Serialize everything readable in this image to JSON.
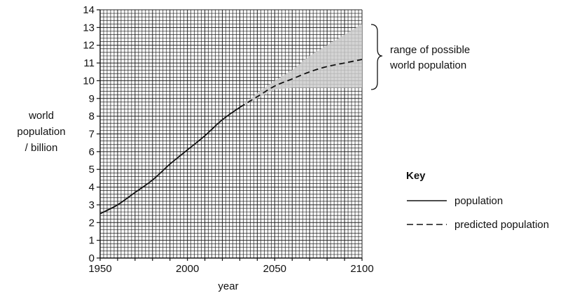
{
  "chart_data": {
    "type": "line",
    "xlabel": "year",
    "ylabel_lines": [
      "world",
      "population",
      "/ billion"
    ],
    "xlim": [
      1950,
      2100
    ],
    "ylim": [
      0,
      14
    ],
    "x_ticks": [
      "1950",
      "2000",
      "2050",
      "2100"
    ],
    "y_ticks": [
      "0",
      "1",
      "2",
      "3",
      "4",
      "5",
      "6",
      "7",
      "8",
      "9",
      "10",
      "11",
      "12",
      "13",
      "14"
    ],
    "grid": "fine grid, 5 minor divisions per 10 years and per billion",
    "series": [
      {
        "name": "population",
        "style": "solid",
        "x": [
          1950,
          1960,
          1970,
          1980,
          1990,
          2000,
          2010,
          2020,
          2030
        ],
        "y": [
          2.5,
          3.0,
          3.7,
          4.4,
          5.3,
          6.1,
          6.9,
          7.8,
          8.5
        ]
      },
      {
        "name": "predicted population",
        "style": "dashed",
        "x": [
          2030,
          2040,
          2050,
          2060,
          2070,
          2080,
          2090,
          2100
        ],
        "y": [
          8.5,
          9.1,
          9.7,
          10.1,
          10.5,
          10.8,
          11.0,
          11.2
        ]
      }
    ],
    "range_band": {
      "label_lines": [
        "range of possible",
        "world population"
      ],
      "x": [
        2030,
        2040,
        2050,
        2060,
        2070,
        2080,
        2090,
        2100
      ],
      "lower": [
        8.5,
        9.0,
        9.5,
        9.6,
        9.6,
        9.6,
        9.6,
        9.6
      ],
      "upper": [
        8.5,
        9.3,
        10.0,
        10.6,
        11.4,
        12.0,
        12.6,
        13.2
      ]
    },
    "legend": {
      "title": "Key",
      "position": "right",
      "entries": [
        {
          "label": "population",
          "style": "solid"
        },
        {
          "label": "predicted population",
          "style": "dashed"
        }
      ]
    }
  },
  "colors": {
    "line": "#111111",
    "grid": "#222222",
    "band": "#cccccc"
  }
}
